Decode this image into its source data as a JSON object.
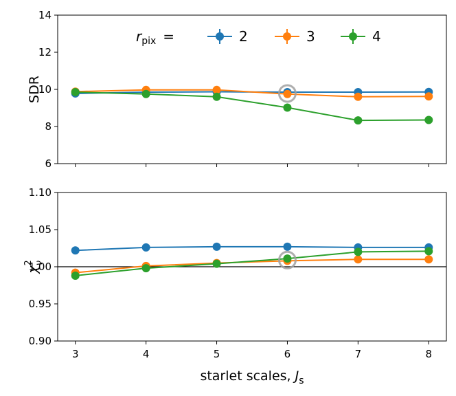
{
  "chart_data": [
    {
      "type": "line",
      "panel": "top",
      "x": [
        3,
        4,
        5,
        6,
        7,
        8
      ],
      "ylabel": "SDR",
      "xlabel": "",
      "ylim": [
        6,
        14
      ],
      "xlim": [
        2.75,
        8.25
      ],
      "yticks": [
        "6",
        "8",
        "10",
        "12",
        "14"
      ],
      "legend": {
        "title_main": "r",
        "title_sub": "pix",
        "title_suffix": "=",
        "placement": "top-center"
      },
      "series": [
        {
          "name": "2",
          "color": "#1f77b4",
          "values": [
            9.78,
            9.85,
            9.87,
            9.85,
            9.85,
            9.86
          ]
        },
        {
          "name": "3",
          "color": "#ff7f0e",
          "values": [
            9.88,
            9.97,
            9.97,
            9.75,
            9.6,
            9.62
          ]
        },
        {
          "name": "4",
          "color": "#2ca02c",
          "values": [
            9.85,
            9.75,
            9.6,
            9.02,
            8.33,
            8.35
          ]
        }
      ],
      "highlight": {
        "x": 6,
        "y": 9.78,
        "color": "#a0a0a0"
      }
    },
    {
      "type": "line",
      "panel": "bottom",
      "x": [
        3,
        4,
        5,
        6,
        7,
        8
      ],
      "xticks": [
        "3",
        "4",
        "5",
        "6",
        "7",
        "8"
      ],
      "ylabel_main": "χ",
      "ylabel_sup": "2",
      "ylabel_sub": "ν",
      "xlabel_text": "starlet scales, ",
      "xlabel_var": "J",
      "xlabel_sub": "s",
      "ylim": [
        0.9,
        1.1
      ],
      "xlim": [
        2.75,
        8.25
      ],
      "yticks": [
        "0.90",
        "0.95",
        "1.00",
        "1.05",
        "1.10"
      ],
      "reference_line": 1.0,
      "series": [
        {
          "name": "2",
          "color": "#1f77b4",
          "values": [
            1.022,
            1.026,
            1.027,
            1.027,
            1.026,
            1.026
          ]
        },
        {
          "name": "3",
          "color": "#ff7f0e",
          "values": [
            0.992,
            1.001,
            1.005,
            1.008,
            1.01,
            1.01
          ]
        },
        {
          "name": "4",
          "color": "#2ca02c",
          "values": [
            0.988,
            0.998,
            1.004,
            1.011,
            1.02,
            1.021
          ]
        }
      ],
      "highlight": {
        "x": 6,
        "y": 1.009,
        "color": "#a0a0a0"
      }
    }
  ]
}
